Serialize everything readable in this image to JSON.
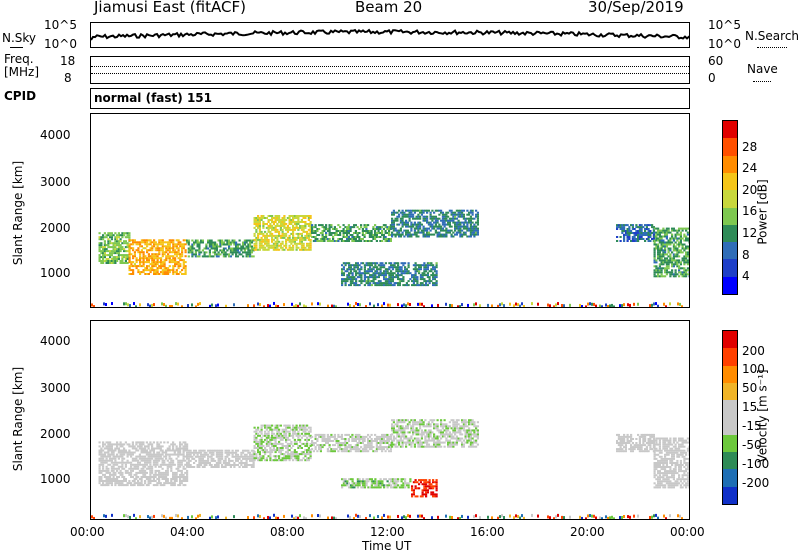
{
  "header": {
    "station": "Jiamusi East (fitACF)",
    "beam": "Beam 20",
    "date": "30/Sep/2019"
  },
  "noise_panel": {
    "left_label": "N.Sky",
    "right_label": "N.Search",
    "left_ticks": [
      "10^5",
      "10^0"
    ],
    "right_ticks": [
      "10^5",
      "10^0"
    ]
  },
  "freq_panel": {
    "left_label_line1": "Freq.",
    "left_label_line2": "[MHz]",
    "left_ticks": [
      "18",
      "8"
    ],
    "right_label": "Nave",
    "right_ticks": [
      "60",
      "0"
    ]
  },
  "cpid_panel": {
    "label": "CPID",
    "value": "normal (fast) 151"
  },
  "axes": {
    "ylabel": "Slant Range [km]",
    "xlabel": "Time UT",
    "y_ticks": [
      "4000",
      "3000",
      "2000",
      "1000"
    ],
    "x_ticks": [
      "00:00",
      "04:00",
      "08:00",
      "12:00",
      "16:00",
      "20:00",
      "00:00"
    ]
  },
  "colorbars": {
    "power": {
      "label": "Power [dB]",
      "ticks": [
        "28",
        "24",
        "20",
        "16",
        "12",
        "8",
        "4"
      ],
      "colors": [
        "#0000ff",
        "#1e3fc8",
        "#2f6db8",
        "#2e8b57",
        "#7ec850",
        "#c8d83c",
        "#f5c518",
        "#ff8c00",
        "#ff5000",
        "#e00000"
      ]
    },
    "velocity": {
      "label": "Velocity [m s⁻¹]",
      "ticks": [
        "200",
        "100",
        "50",
        "15",
        "-15",
        "-50",
        "-100",
        "-200"
      ],
      "colors": [
        "#1030c8",
        "#1e6eb4",
        "#2e8b57",
        "#6cc83c",
        "#c8c8c8",
        "#c8c8c8",
        "#f0b428",
        "#ff8c00",
        "#ff4000",
        "#e00000"
      ]
    }
  },
  "chart_data": [
    {
      "type": "heatmap",
      "title": "Power",
      "xlabel": "Time UT",
      "ylabel": "Slant Range [km]",
      "xlim": [
        0,
        24
      ],
      "ylim": [
        180,
        4600
      ],
      "colorbar": "Power [dB]",
      "bands": [
        {
          "t0": 0.3,
          "t1": 1.5,
          "r0": 1200,
          "r1": 1900,
          "value": 14
        },
        {
          "t0": 1.5,
          "t1": 3.8,
          "r0": 950,
          "r1": 1750,
          "value": 22
        },
        {
          "t0": 3.8,
          "t1": 6.5,
          "r0": 1350,
          "r1": 1750,
          "value": 12
        },
        {
          "t0": 6.5,
          "t1": 8.8,
          "r0": 1500,
          "r1": 2300,
          "value": 18
        },
        {
          "t0": 8.8,
          "t1": 12.0,
          "r0": 1700,
          "r1": 2100,
          "value": 12
        },
        {
          "t0": 10.0,
          "t1": 13.8,
          "r0": 700,
          "r1": 1200,
          "value": 10
        },
        {
          "t0": 12.0,
          "t1": 15.5,
          "r0": 1800,
          "r1": 2400,
          "value": 10
        },
        {
          "t0": 21.0,
          "t1": 22.5,
          "r0": 1700,
          "r1": 2100,
          "value": 8
        },
        {
          "t0": 22.5,
          "t1": 24.0,
          "r0": 900,
          "r1": 2000,
          "value": 12
        }
      ]
    },
    {
      "type": "heatmap",
      "title": "Velocity",
      "xlabel": "Time UT",
      "ylabel": "Slant Range [km]",
      "xlim": [
        0,
        24
      ],
      "ylim": [
        180,
        4600
      ],
      "colorbar": "Velocity [m s^-1]",
      "bands": [
        {
          "t0": 0.3,
          "t1": 3.8,
          "r0": 950,
          "r1": 1900,
          "value": 0
        },
        {
          "t0": 3.8,
          "t1": 6.5,
          "r0": 1350,
          "r1": 1750,
          "value": 0
        },
        {
          "t0": 6.5,
          "t1": 8.8,
          "r0": 1500,
          "r1": 2300,
          "value": -40
        },
        {
          "t0": 8.8,
          "t1": 12.0,
          "r0": 1700,
          "r1": 2100,
          "value": -20
        },
        {
          "t0": 10.0,
          "t1": 12.8,
          "r0": 900,
          "r1": 1100,
          "value": -60
        },
        {
          "t0": 12.8,
          "t1": 13.8,
          "r0": 700,
          "r1": 1100,
          "value": 200
        },
        {
          "t0": 12.0,
          "t1": 15.5,
          "r0": 1800,
          "r1": 2400,
          "value": -30
        },
        {
          "t0": 21.0,
          "t1": 22.5,
          "r0": 1700,
          "r1": 2100,
          "value": 0
        },
        {
          "t0": 22.5,
          "t1": 24.0,
          "r0": 900,
          "r1": 2000,
          "value": 0
        }
      ]
    }
  ]
}
